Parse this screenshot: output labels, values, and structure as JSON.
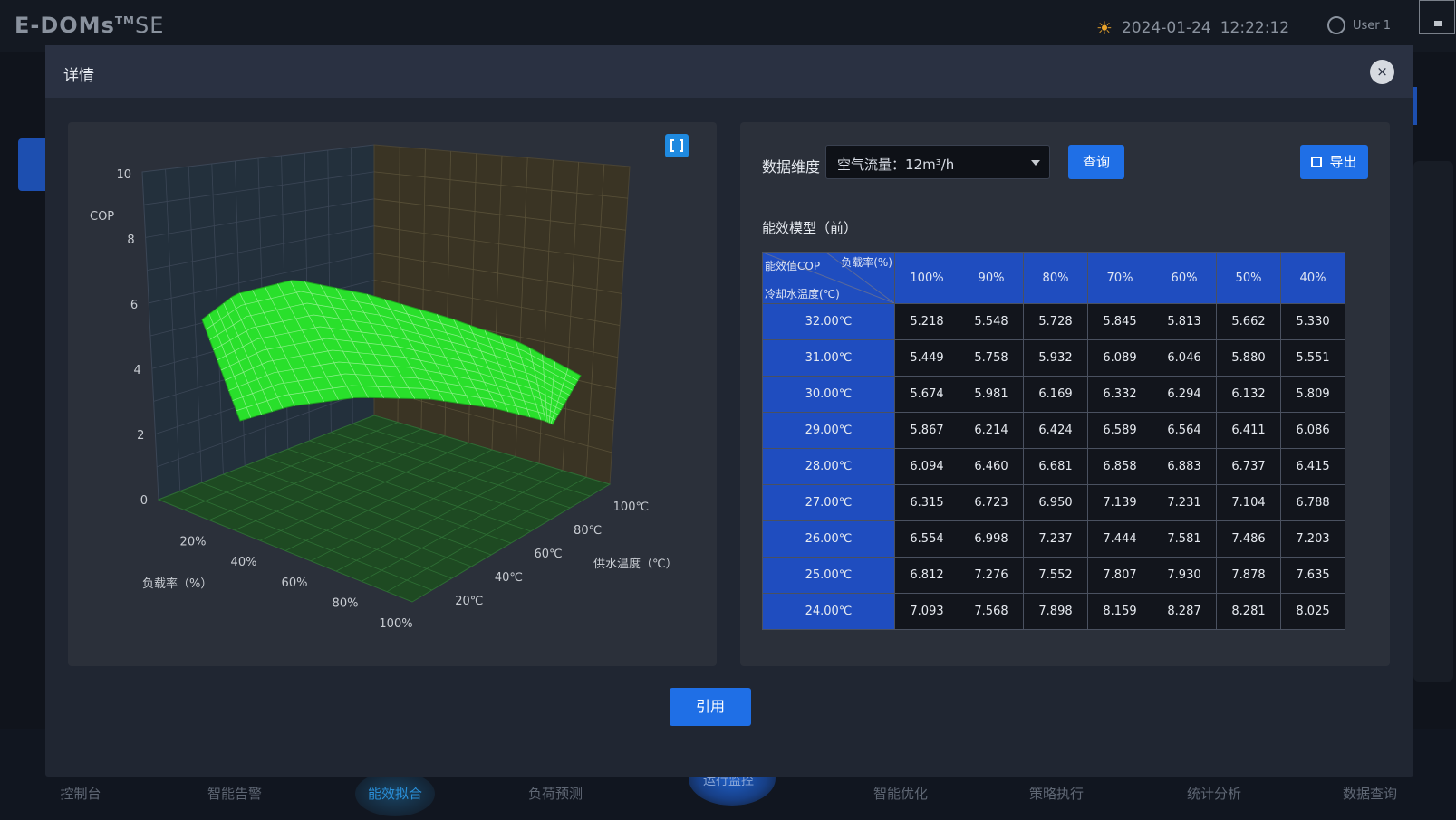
{
  "app": {
    "logo": "E-DOMs",
    "logo_tm": "TM",
    "logo_suffix": "SE",
    "date": "2024-01-24",
    "time": "12:22:12",
    "user": "User 1"
  },
  "bottom_nav": {
    "items": [
      "控制台",
      "智能告警",
      "能效拟合",
      "负荷预测",
      "智能优化",
      "策略执行",
      "统计分析",
      "数据查询"
    ],
    "active": "能效拟合",
    "center_label": "运行监控"
  },
  "modal": {
    "title": "详情",
    "close_label": "×",
    "cite_label": "引用"
  },
  "chart_data": {
    "type": "surface3d",
    "title": "",
    "zlabel": "COP",
    "xlabel": "负载率（%）",
    "ylabel": "供水温度（℃）",
    "zlim": [
      0,
      10
    ],
    "z_ticks": [
      "0",
      "2",
      "4",
      "6",
      "8",
      "10"
    ],
    "x_ticks": [
      "20%",
      "40%",
      "60%",
      "80%",
      "100%"
    ],
    "y_ticks": [
      "20℃",
      "40℃",
      "60℃",
      "80℃",
      "100℃"
    ],
    "surface_color": "#29e02b",
    "floor_color": "#1e4a22",
    "back_wall_color": "#3a3424",
    "side_wall_color": "#23303c"
  },
  "table_panel": {
    "dim_label": "数据维度",
    "select_value": "空气流量：12m³/h",
    "query_label": "查询",
    "export_label": "导出",
    "model_title": "能效模型（前）",
    "corner": {
      "cop_label": "能效值COP",
      "load_label": "负载率(%)",
      "temp_label": "冷却水温度(℃)"
    },
    "columns": [
      "100%",
      "90%",
      "80%",
      "70%",
      "60%",
      "50%",
      "40%"
    ],
    "rows": [
      {
        "temp": "32.00℃",
        "values": [
          "5.218",
          "5.548",
          "5.728",
          "5.845",
          "5.813",
          "5.662",
          "5.330"
        ]
      },
      {
        "temp": "31.00℃",
        "values": [
          "5.449",
          "5.758",
          "5.932",
          "6.089",
          "6.046",
          "5.880",
          "5.551"
        ]
      },
      {
        "temp": "30.00℃",
        "values": [
          "5.674",
          "5.981",
          "6.169",
          "6.332",
          "6.294",
          "6.132",
          "5.809"
        ]
      },
      {
        "temp": "29.00℃",
        "values": [
          "5.867",
          "6.214",
          "6.424",
          "6.589",
          "6.564",
          "6.411",
          "6.086"
        ]
      },
      {
        "temp": "28.00℃",
        "values": [
          "6.094",
          "6.460",
          "6.681",
          "6.858",
          "6.883",
          "6.737",
          "6.415"
        ]
      },
      {
        "temp": "27.00℃",
        "values": [
          "6.315",
          "6.723",
          "6.950",
          "7.139",
          "7.231",
          "7.104",
          "6.788"
        ]
      },
      {
        "temp": "26.00℃",
        "values": [
          "6.554",
          "6.998",
          "7.237",
          "7.444",
          "7.581",
          "7.486",
          "7.203"
        ]
      },
      {
        "temp": "25.00℃",
        "values": [
          "6.812",
          "7.276",
          "7.552",
          "7.807",
          "7.930",
          "7.878",
          "7.635"
        ]
      },
      {
        "temp": "24.00℃",
        "values": [
          "7.093",
          "7.568",
          "7.898",
          "8.159",
          "8.287",
          "8.281",
          "8.025"
        ]
      }
    ]
  }
}
